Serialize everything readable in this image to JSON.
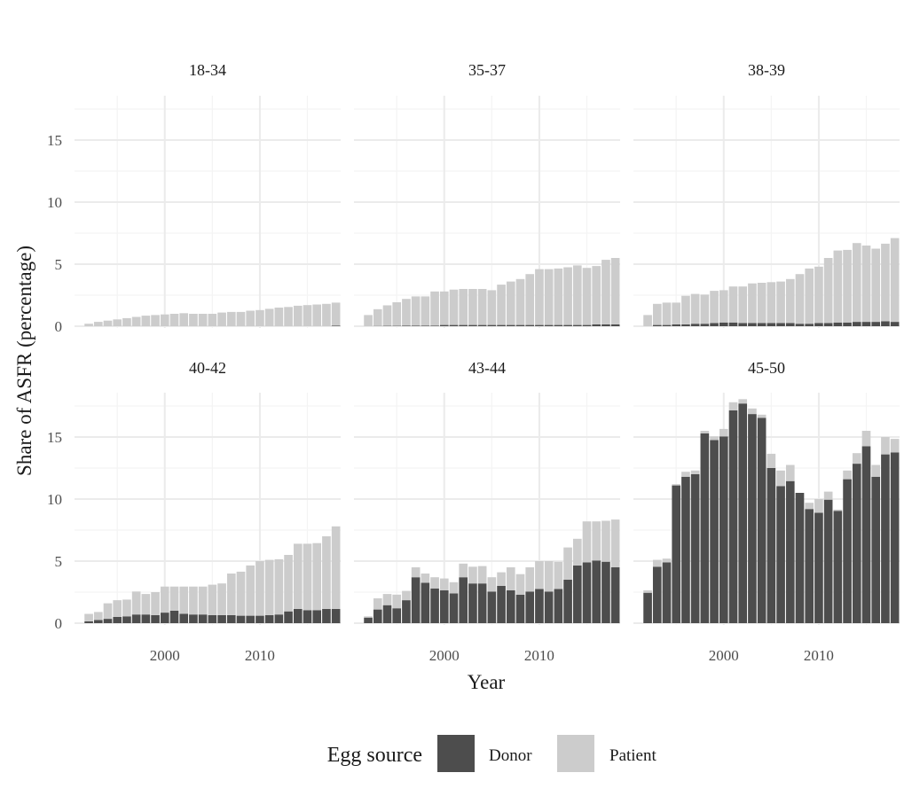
{
  "chart_data": {
    "type": "bar",
    "stacked": true,
    "faceted": true,
    "xlabel": "Year",
    "ylabel": "Share of ASFR (percentage)",
    "ylim": [
      0,
      18.5
    ],
    "xlim": [
      1990.5,
      2018.5
    ],
    "y_ticks": [
      0,
      5,
      10,
      15
    ],
    "x_ticks": [
      2000,
      2010
    ],
    "grid": true,
    "legend": {
      "title": "Egg source",
      "position": "bottom",
      "entries": [
        "Donor",
        "Patient"
      ]
    },
    "colors": {
      "Donor": "#4d4d4d",
      "Patient": "#cccccc"
    },
    "years": [
      1992,
      1993,
      1994,
      1995,
      1996,
      1997,
      1998,
      1999,
      2000,
      2001,
      2002,
      2003,
      2004,
      2005,
      2006,
      2007,
      2008,
      2009,
      2010,
      2011,
      2012,
      2013,
      2014,
      2015,
      2016,
      2017,
      2018
    ],
    "panels": [
      {
        "label": "18-34",
        "donor": [
          0,
          0,
          0,
          0,
          0,
          0,
          0,
          0,
          0,
          0,
          0,
          0,
          0,
          0,
          0,
          0,
          0,
          0,
          0,
          0,
          0,
          0,
          0,
          0,
          0,
          0,
          0.05
        ],
        "patient": [
          0.2,
          0.35,
          0.45,
          0.55,
          0.65,
          0.75,
          0.85,
          0.9,
          0.95,
          1.0,
          1.05,
          1.0,
          1.0,
          1.0,
          1.1,
          1.15,
          1.15,
          1.25,
          1.3,
          1.4,
          1.5,
          1.55,
          1.65,
          1.7,
          1.75,
          1.8,
          1.85
        ]
      },
      {
        "label": "35-37",
        "donor": [
          0,
          0.02,
          0.03,
          0.03,
          0.05,
          0.05,
          0.05,
          0.05,
          0.1,
          0.1,
          0.1,
          0.1,
          0.1,
          0.1,
          0.1,
          0.1,
          0.1,
          0.1,
          0.1,
          0.1,
          0.1,
          0.1,
          0.1,
          0.1,
          0.15,
          0.15,
          0.15
        ],
        "patient": [
          0.9,
          1.35,
          1.65,
          1.9,
          2.15,
          2.35,
          2.35,
          2.75,
          2.7,
          2.85,
          2.9,
          2.9,
          2.9,
          2.8,
          3.25,
          3.5,
          3.7,
          4.1,
          4.5,
          4.5,
          4.55,
          4.65,
          4.8,
          4.6,
          4.7,
          5.2,
          5.35
        ]
      },
      {
        "label": "38-39",
        "donor": [
          0,
          0.1,
          0.1,
          0.15,
          0.15,
          0.2,
          0.2,
          0.25,
          0.3,
          0.3,
          0.25,
          0.25,
          0.25,
          0.25,
          0.25,
          0.25,
          0.2,
          0.2,
          0.25,
          0.25,
          0.3,
          0.3,
          0.35,
          0.35,
          0.35,
          0.4,
          0.35
        ],
        "patient": [
          0.9,
          1.7,
          1.8,
          1.75,
          2.3,
          2.4,
          2.35,
          2.6,
          2.6,
          2.9,
          2.95,
          3.2,
          3.25,
          3.3,
          3.35,
          3.55,
          4.0,
          4.45,
          4.55,
          5.25,
          5.8,
          5.85,
          6.35,
          6.15,
          5.9,
          6.25,
          6.75
        ]
      },
      {
        "label": "40-42",
        "donor": [
          0.15,
          0.25,
          0.35,
          0.5,
          0.55,
          0.7,
          0.7,
          0.65,
          0.85,
          1.0,
          0.75,
          0.7,
          0.7,
          0.65,
          0.65,
          0.65,
          0.6,
          0.6,
          0.6,
          0.65,
          0.7,
          0.95,
          1.15,
          1.05,
          1.05,
          1.15,
          1.15
        ],
        "patient": [
          0.6,
          0.65,
          1.25,
          1.35,
          1.35,
          1.85,
          1.65,
          1.85,
          2.1,
          1.95,
          2.2,
          2.25,
          2.25,
          2.45,
          2.55,
          3.35,
          3.55,
          4.05,
          4.4,
          4.45,
          4.45,
          4.55,
          5.25,
          5.35,
          5.4,
          5.85,
          6.65
        ]
      },
      {
        "label": "43-44",
        "donor": [
          0.45,
          1.1,
          1.45,
          1.2,
          1.85,
          3.7,
          3.25,
          2.8,
          2.65,
          2.4,
          3.7,
          3.2,
          3.2,
          2.55,
          3.0,
          2.65,
          2.3,
          2.55,
          2.75,
          2.55,
          2.75,
          3.5,
          4.65,
          4.9,
          5.05,
          4.95,
          4.5
        ],
        "patient": [
          0.1,
          0.9,
          0.9,
          1.1,
          0.75,
          0.8,
          0.75,
          0.9,
          0.95,
          0.9,
          1.1,
          1.35,
          1.4,
          1.15,
          1.1,
          1.85,
          1.65,
          1.95,
          2.25,
          2.45,
          2.2,
          2.6,
          2.15,
          3.3,
          3.15,
          3.3,
          3.85
        ]
      },
      {
        "label": "45-50",
        "donor": [
          2.45,
          4.55,
          4.9,
          11.1,
          11.8,
          12.0,
          15.3,
          14.75,
          15.05,
          17.15,
          17.7,
          16.85,
          16.55,
          12.5,
          11.05,
          11.45,
          10.5,
          9.2,
          8.9,
          9.95,
          9.05,
          11.6,
          12.85,
          14.25,
          11.8,
          13.6,
          13.75
        ],
        "patient": [
          0.2,
          0.55,
          0.3,
          0.1,
          0.4,
          0.3,
          0.2,
          0.3,
          0.6,
          0.65,
          0.35,
          0.45,
          0.25,
          1.15,
          1.25,
          1.3,
          0.0,
          0.5,
          1.1,
          0.65,
          0.1,
          0.7,
          0.85,
          1.25,
          0.95,
          1.4,
          1.1
        ]
      }
    ]
  }
}
